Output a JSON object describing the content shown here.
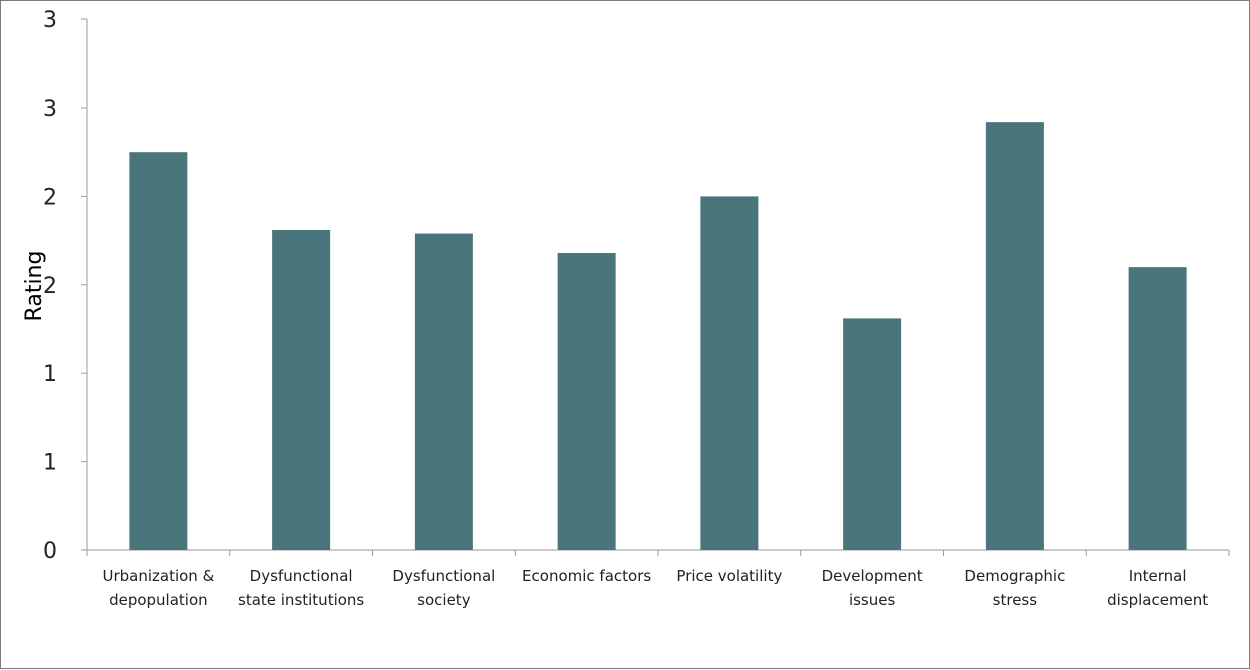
{
  "chart_data": {
    "type": "bar",
    "title": "",
    "xlabel": "",
    "ylabel": "Rating",
    "ylim": [
      0,
      2.5
    ],
    "y_tick_values": [
      0,
      0.5,
      1,
      1.5,
      2,
      2.5
    ],
    "y_tick_labels": [
      "0",
      "1",
      "1",
      "2",
      "2",
      "3"
    ],
    "extra_top_tick_label": "3",
    "grid": false,
    "legend": "none",
    "bar_color": "#4A767B",
    "axis_color": "#9a9a9a",
    "categories": [
      [
        "Urbanization &",
        "depopulation"
      ],
      [
        "Dysfunctional",
        "state institutions"
      ],
      [
        "Dysfunctional",
        "society"
      ],
      [
        "Economic factors"
      ],
      [
        "Price volatility"
      ],
      [
        "Development",
        "issues"
      ],
      [
        "Demographic",
        "stress"
      ],
      [
        "Internal",
        "displacement"
      ]
    ],
    "values": [
      2.25,
      1.81,
      1.79,
      1.68,
      2.0,
      1.31,
      2.42,
      1.6
    ]
  }
}
